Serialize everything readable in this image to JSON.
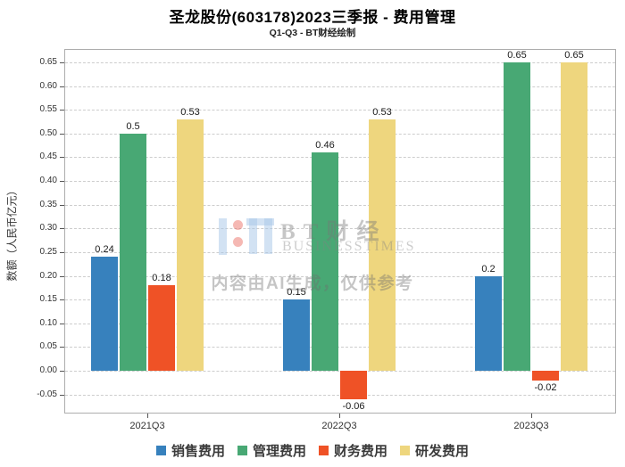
{
  "title": "圣龙股份(603178)2023三季报 - 费用管理",
  "subtitle": "Q1-Q3 - BT财经绘制",
  "watermark": {
    "brand_cn": "BT财经",
    "brand_en": "BUSINESSTIMES",
    "notice": "内容由AI生成，仅供参考"
  },
  "chart_data": {
    "type": "bar",
    "title": "圣龙股份(603178)2023三季报 - 费用管理",
    "subtitle": "Q1-Q3 - BT财经绘制",
    "xlabel": "",
    "ylabel": "数额（人民币亿元）",
    "categories": [
      "2021Q3",
      "2022Q3",
      "2023Q3"
    ],
    "series": [
      {
        "name": "销售费用",
        "color": "#3781bd",
        "values": [
          0.24,
          0.15,
          0.2
        ],
        "labels": [
          "0.24",
          "0.15",
          "0.2"
        ]
      },
      {
        "name": "管理费用",
        "color": "#48a874",
        "values": [
          0.5,
          0.46,
          0.65
        ],
        "labels": [
          "0.5",
          "0.46",
          "0.65"
        ]
      },
      {
        "name": "财务费用",
        "color": "#ef5226",
        "values": [
          0.18,
          -0.06,
          -0.02
        ],
        "labels": [
          "0.18",
          "-0.06",
          "-0.02"
        ]
      },
      {
        "name": "研发费用",
        "color": "#eed67e",
        "values": [
          0.53,
          0.53,
          0.65
        ],
        "labels": [
          "0.53",
          "0.53",
          "0.65"
        ]
      }
    ],
    "yticks": [
      -0.05,
      0.0,
      0.05,
      0.1,
      0.15,
      0.2,
      0.25,
      0.3,
      0.35,
      0.4,
      0.45,
      0.5,
      0.55,
      0.6,
      0.65
    ],
    "ylim": [
      -0.09,
      0.678
    ],
    "grid": true,
    "grid_style": "dashed",
    "legend_position": "bottom"
  }
}
